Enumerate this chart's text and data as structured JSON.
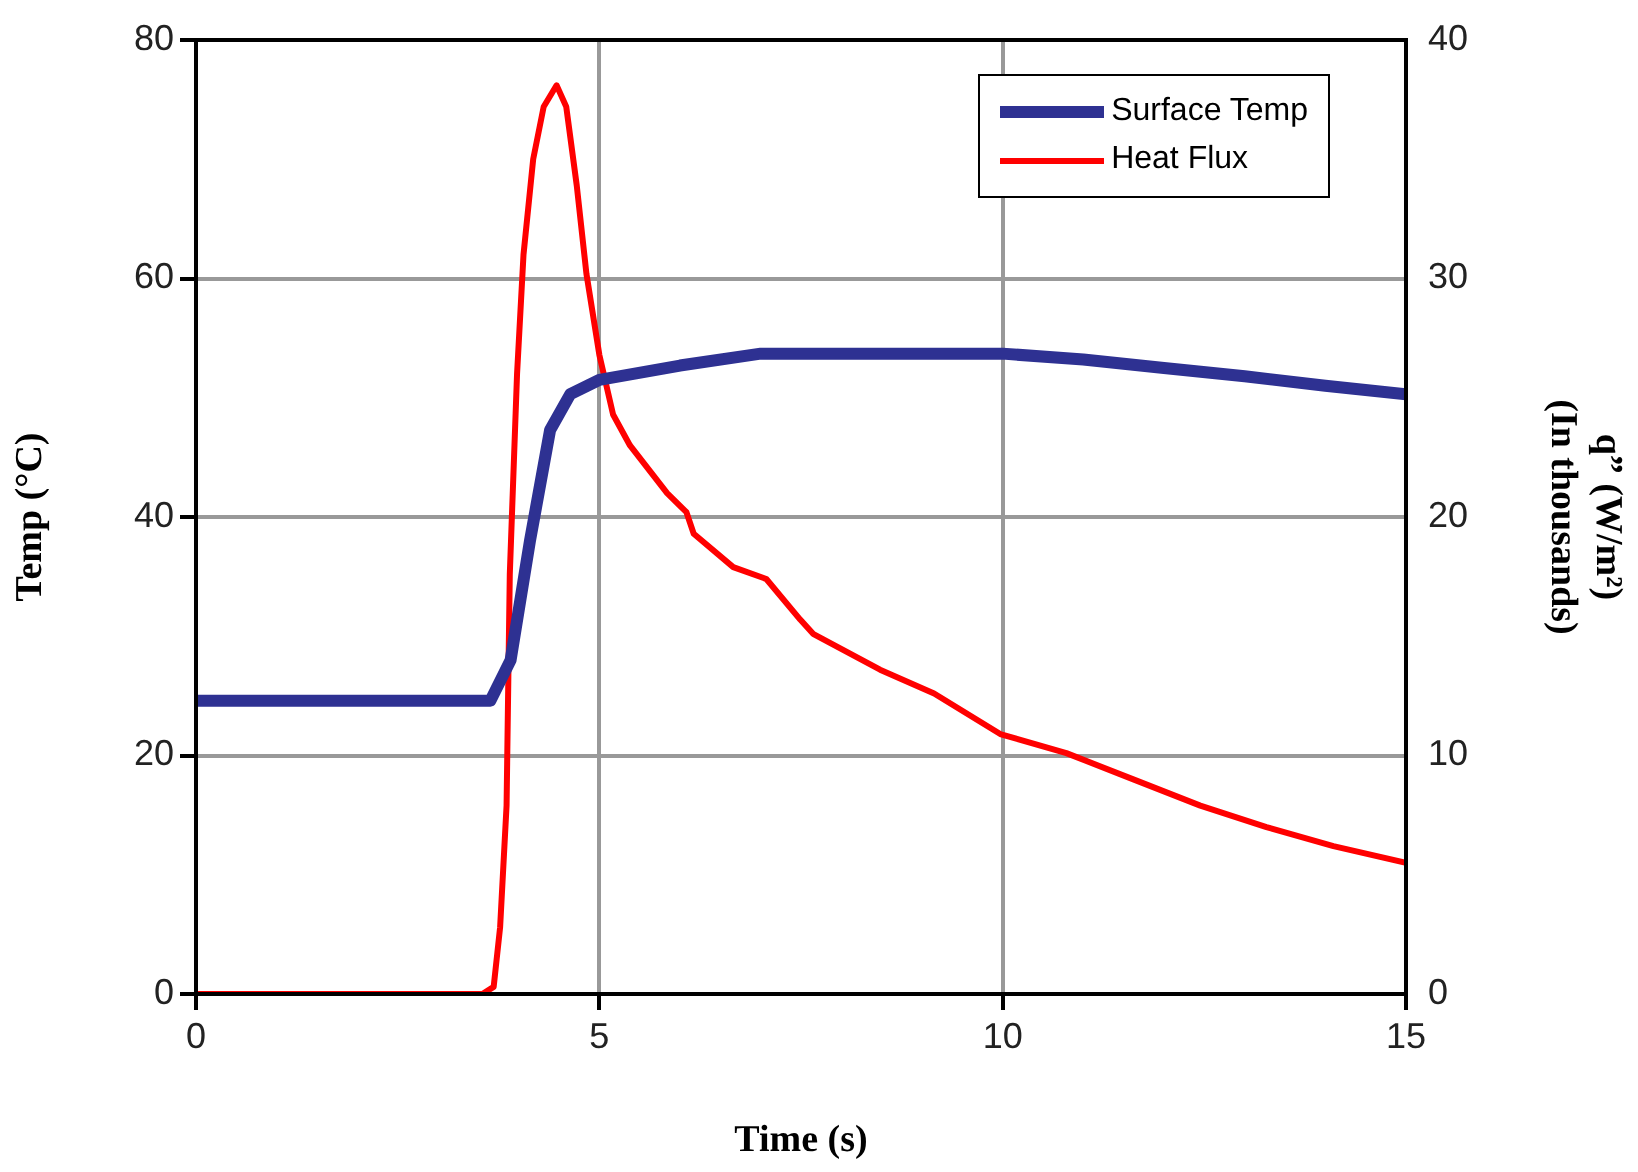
{
  "chart_data": {
    "type": "line",
    "xlabel": "Time (s)",
    "ylabel": "Temp (°C)",
    "y2label": "q” (W/m²)\n(In thousands)",
    "xlim": [
      0,
      15
    ],
    "xticks": [
      0,
      5,
      10,
      15
    ],
    "ylim": [
      0,
      80
    ],
    "yticks": [
      0,
      20,
      40,
      60,
      80
    ],
    "y2lim": [
      0,
      40
    ],
    "y2ticks": [
      0,
      10,
      20,
      30,
      40
    ],
    "grid": true,
    "legend": "top right",
    "marker": "none",
    "line_style": "solid",
    "series": [
      {
        "name": "Surface Temp",
        "color": "#2e3192",
        "x": [
          0,
          1,
          2,
          3,
          3.65,
          3.9,
          4.14,
          4.39,
          4.64,
          5,
          6,
          7,
          8,
          9,
          10,
          11,
          12,
          13,
          14,
          15
        ],
        "values": [
          24.6,
          24.6,
          24.6,
          24.6,
          24.6,
          28,
          38,
          47.3,
          50.3,
          51.5,
          52.7,
          53.7,
          53.7,
          53.7,
          53.7,
          53.2,
          52.5,
          51.8,
          51,
          50.3
        ]
      },
      {
        "name": "Heat Flux",
        "color": "#ff0000",
        "axis": "y2",
        "x": [
          0,
          1,
          2,
          3,
          3.55,
          3.69,
          3.77,
          3.85,
          3.89,
          3.98,
          4.06,
          4.18,
          4.31,
          4.47,
          4.59,
          4.72,
          4.84,
          5,
          5.17,
          5.38,
          5.84,
          6.08,
          6.17,
          6.66,
          7.07,
          7.49,
          7.65,
          8.48,
          9.15,
          9.97,
          10.79,
          11.62,
          12.45,
          13.27,
          14.1,
          15
        ],
        "values": [
          0,
          0,
          0,
          0,
          0,
          0.3,
          2.8,
          7.9,
          17.6,
          26,
          31,
          35,
          37.2,
          38.1,
          37.2,
          33.9,
          30.2,
          26.8,
          24.3,
          23,
          21,
          20.2,
          19.3,
          17.9,
          17.4,
          15.7,
          15.1,
          13.6,
          12.6,
          10.9,
          10.1,
          9,
          7.9,
          7,
          6.2,
          5.5
        ]
      }
    ]
  }
}
